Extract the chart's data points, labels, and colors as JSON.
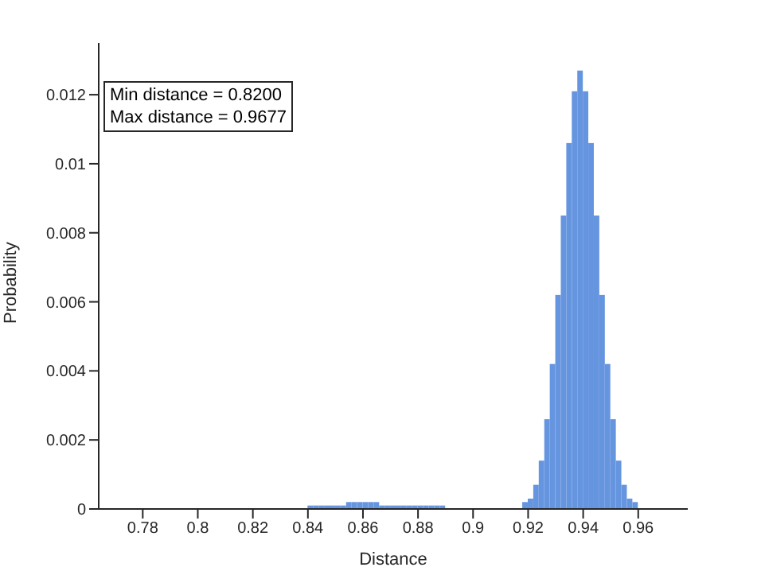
{
  "chart_data": {
    "type": "histogram",
    "xlabel": "Distance",
    "ylabel": "Probability",
    "color": "#6695e0",
    "annotations": [
      "Min distance = 0.8200",
      "Max distance = 0.9677"
    ],
    "xlim": [
      0.764,
      0.978
    ],
    "xticks": [
      0.78,
      0.8,
      0.82,
      0.84,
      0.86,
      0.88,
      0.9,
      0.92,
      0.94,
      0.96
    ],
    "ylim": [
      0,
      0.0135
    ],
    "yticks": [
      0,
      0.002,
      0.004,
      0.006,
      0.008,
      0.01,
      0.012
    ],
    "bins": [
      0.84,
      0.842,
      0.844,
      0.846,
      0.848,
      0.85,
      0.852,
      0.854,
      0.856,
      0.858,
      0.86,
      0.862,
      0.864,
      0.866,
      0.868,
      0.87,
      0.872,
      0.874,
      0.876,
      0.878,
      0.88,
      0.882,
      0.884,
      0.886,
      0.888,
      0.89,
      0.892,
      0.894,
      0.896,
      0.898,
      0.9,
      0.902,
      0.904,
      0.906,
      0.908,
      0.91,
      0.912,
      0.914,
      0.916,
      0.918,
      0.92,
      0.922,
      0.924,
      0.926,
      0.928,
      0.93,
      0.932,
      0.934,
      0.936,
      0.938,
      0.94,
      0.942,
      0.944,
      0.946,
      0.948,
      0.95,
      0.952,
      0.954,
      0.956,
      0.958,
      0.96
    ],
    "values": [
      0.0001,
      0.0001,
      0.0001,
      0.0001,
      0.0001,
      0.0001,
      0.0001,
      0.0002,
      0.0002,
      0.0002,
      0.0002,
      0.0002,
      0.0002,
      0.0001,
      0.0001,
      0.0001,
      0.0001,
      0.0001,
      0.0001,
      0.0001,
      0.0001,
      0.0001,
      0.0001,
      0.0001,
      0.0001,
      0,
      0,
      0,
      0,
      0,
      0,
      0,
      0,
      0,
      0,
      0,
      0,
      0,
      0,
      0.0002,
      0.0003,
      0.0007,
      0.0014,
      0.0026,
      0.0042,
      0.0062,
      0.0085,
      0.0106,
      0.0121,
      0.0127,
      0.0121,
      0.0106,
      0.0085,
      0.0062,
      0.0042,
      0.0026,
      0.0014,
      0.0007,
      0.0003,
      0.0002
    ]
  }
}
